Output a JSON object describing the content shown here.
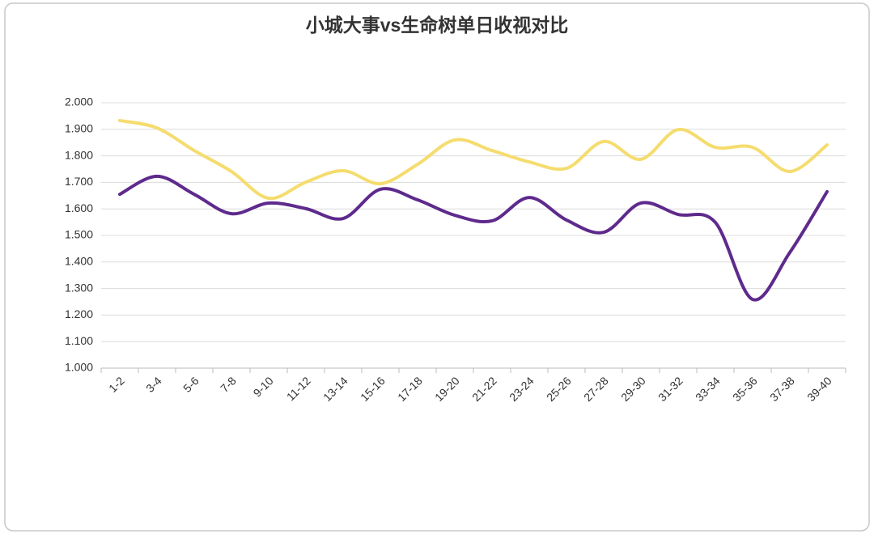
{
  "chart_data": {
    "type": "line",
    "title": "小城大事vs生命树单日收视对比",
    "categories": [
      "1-2",
      "3-4",
      "5-6",
      "7-8",
      "9-10",
      "11-12",
      "13-14",
      "15-16",
      "17-18",
      "19-20",
      "21-22",
      "23-24",
      "25-26",
      "27-28",
      "29-30",
      "31-32",
      "33-34",
      "35-36",
      "37-38",
      "39-40"
    ],
    "series": [
      {
        "color": "#f5dc6e",
        "values": [
          1.933,
          1.905,
          1.82,
          1.741,
          1.64,
          1.701,
          1.744,
          1.695,
          1.768,
          1.86,
          1.82,
          1.777,
          1.753,
          1.854,
          1.787,
          1.899,
          1.832,
          1.832,
          1.741,
          1.841
        ]
      },
      {
        "color": "#5e2a8c",
        "values": [
          1.655,
          1.723,
          1.655,
          1.582,
          1.622,
          1.601,
          1.564,
          1.674,
          1.634,
          1.576,
          1.555,
          1.643,
          1.558,
          1.512,
          1.622,
          1.579,
          1.549,
          1.259,
          1.436,
          1.665
        ]
      }
    ],
    "ylim": [
      1.0,
      2.0
    ],
    "yticks": [
      {
        "value": 1.0,
        "label": "1.000"
      },
      {
        "value": 1.1,
        "label": "1.100"
      },
      {
        "value": 1.2,
        "label": "1.200"
      },
      {
        "value": 1.3,
        "label": "1.300"
      },
      {
        "value": 1.4,
        "label": "1.400"
      },
      {
        "value": 1.5,
        "label": "1.500"
      },
      {
        "value": 1.6,
        "label": "1.600"
      },
      {
        "value": 1.7,
        "label": "1.700"
      },
      {
        "value": 1.8,
        "label": "1.800"
      },
      {
        "value": 1.9,
        "label": "1.900"
      },
      {
        "value": 2.0,
        "label": "2.000"
      }
    ],
    "grid": true
  }
}
